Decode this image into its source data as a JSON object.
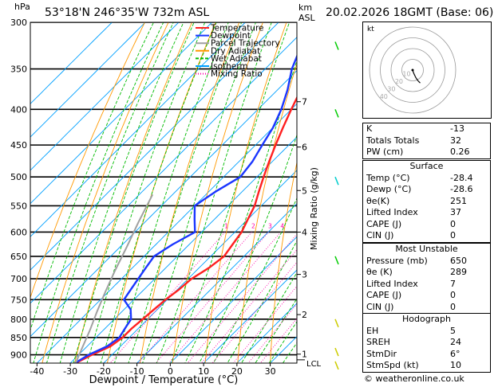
{
  "header": {
    "location": "53°18'N  246°35'W  732m  ASL",
    "datetime": "20.02.2026  18GMT  (Base: 06)",
    "hpa_label": "hPa",
    "km_label": "km",
    "asl_label": "ASL"
  },
  "chart_data": {
    "type": "skew-t",
    "xlabel": "Dewpoint / Temperature (°C)",
    "ylabel_right": "Mixing Ratio (g/kg)",
    "x_ticks": [
      -40,
      -30,
      -20,
      -10,
      0,
      10,
      20,
      30
    ],
    "x_range": [
      -42,
      38
    ],
    "pressure_levels": [
      300,
      350,
      400,
      450,
      500,
      550,
      600,
      650,
      700,
      750,
      800,
      850,
      900
    ],
    "pressure_range": [
      300,
      925
    ],
    "km_ticks": [
      {
        "label": "1",
        "p": 898
      },
      {
        "label": "2",
        "p": 788
      },
      {
        "label": "3",
        "p": 690
      },
      {
        "label": "4",
        "p": 600
      },
      {
        "label": "5",
        "p": 523
      },
      {
        "label": "6",
        "p": 453
      },
      {
        "label": "7",
        "p": 390
      }
    ],
    "lcl_label": "LCL",
    "lcl_p": 915,
    "mixing_ratio_values": [
      1,
      2,
      3,
      4,
      6,
      8,
      10,
      15,
      20,
      25
    ],
    "mixing_ratio_labels": [
      "1",
      "2",
      "3",
      "4",
      "6",
      "8",
      "10",
      "15",
      "20",
      "25"
    ],
    "legend": [
      {
        "label": "Temperature",
        "color": "#ff2020"
      },
      {
        "label": "Dewpoint",
        "color": "#1a36ff"
      },
      {
        "label": "Parcel Trajectory",
        "color": "#a0a0a0"
      },
      {
        "label": "Dry Adiabat",
        "color": "#ff9900"
      },
      {
        "label": "Wet Adiabat",
        "color": "#00bb00"
      },
      {
        "label": "Isotherm",
        "color": "#00a0ff"
      },
      {
        "label": "Mixing Ratio",
        "color": "#ff00aa"
      }
    ],
    "series": [
      {
        "name": "Temperature",
        "color": "#ff2020",
        "points": [
          [
            -28.4,
            925
          ],
          [
            -26,
            900
          ],
          [
            -23,
            875
          ],
          [
            -22,
            850
          ],
          [
            -22,
            825
          ],
          [
            -21.5,
            800
          ],
          [
            -21,
            775
          ],
          [
            -20.5,
            750
          ],
          [
            -19.5,
            725
          ],
          [
            -19,
            700
          ],
          [
            -17,
            675
          ],
          [
            -16,
            650
          ],
          [
            -17,
            625
          ],
          [
            -18,
            600
          ],
          [
            -20,
            575
          ],
          [
            -22,
            550
          ],
          [
            -25,
            525
          ],
          [
            -28,
            500
          ],
          [
            -31,
            475
          ],
          [
            -34,
            450
          ],
          [
            -37,
            425
          ],
          [
            -40,
            400
          ],
          [
            -43,
            375
          ],
          [
            -46,
            350
          ],
          [
            -50,
            325
          ],
          [
            -54,
            300
          ]
        ]
      },
      {
        "name": "Dewpoint",
        "color": "#1a36ff",
        "points": [
          [
            -28.6,
            925
          ],
          [
            -27,
            900
          ],
          [
            -24,
            875
          ],
          [
            -23,
            850
          ],
          [
            -24,
            825
          ],
          [
            -25,
            800
          ],
          [
            -28,
            775
          ],
          [
            -33,
            750
          ],
          [
            -34,
            725
          ],
          [
            -35,
            700
          ],
          [
            -36,
            675
          ],
          [
            -37,
            650
          ],
          [
            -35,
            625
          ],
          [
            -32,
            600
          ],
          [
            -36,
            575
          ],
          [
            -40,
            550
          ],
          [
            -38,
            525
          ],
          [
            -35,
            500
          ],
          [
            -36,
            475
          ],
          [
            -38,
            450
          ],
          [
            -40,
            425
          ],
          [
            -43,
            400
          ],
          [
            -47,
            375
          ],
          [
            -52,
            350
          ],
          [
            -56,
            325
          ],
          [
            -60,
            300
          ]
        ]
      },
      {
        "name": "Parcel Trajectory",
        "color": "#a0a0a0",
        "points": [
          [
            -28.4,
            925
          ],
          [
            -31,
            880
          ],
          [
            -34,
            830
          ],
          [
            -37.5,
            780
          ],
          [
            -41,
            730
          ],
          [
            -44.5,
            680
          ],
          [
            -48,
            630
          ],
          [
            -52,
            580
          ],
          [
            -56,
            530
          ]
        ]
      }
    ]
  },
  "hodograph": {
    "label": "kt",
    "ring_labels": [
      "10",
      "20",
      "30",
      "40"
    ],
    "points_uv": [
      [
        0,
        0
      ],
      [
        1,
        -3
      ],
      [
        3,
        -7
      ],
      [
        5,
        -10
      ],
      [
        7,
        -12
      ]
    ]
  },
  "indices": {
    "rows": [
      {
        "label": "K",
        "value": "-13"
      },
      {
        "label": "Totals Totals",
        "value": "32"
      },
      {
        "label": "PW (cm)",
        "value": "0.26"
      }
    ]
  },
  "surface": {
    "title": "Surface",
    "rows": [
      {
        "label": "Temp (°C)",
        "value": "-28.4"
      },
      {
        "label": "Dewp (°C)",
        "value": "-28.6"
      },
      {
        "label": "θe(K)",
        "value": "251"
      },
      {
        "label": "Lifted Index",
        "value": "37"
      },
      {
        "label": "CAPE (J)",
        "value": "0"
      },
      {
        "label": "CIN (J)",
        "value": "0"
      }
    ]
  },
  "most_unstable": {
    "title": "Most Unstable",
    "rows": [
      {
        "label": "Pressure (mb)",
        "value": "650"
      },
      {
        "label": "θe (K)",
        "value": "289"
      },
      {
        "label": "Lifted Index",
        "value": "7"
      },
      {
        "label": "CAPE (J)",
        "value": "0"
      },
      {
        "label": "CIN (J)",
        "value": "0"
      }
    ]
  },
  "hodograph_table": {
    "title": "Hodograph",
    "rows": [
      {
        "label": "EH",
        "value": "5"
      },
      {
        "label": "SREH",
        "value": "24"
      },
      {
        "label": "StmDir",
        "value": "6°"
      },
      {
        "label": "StmSpd (kt)",
        "value": "10"
      }
    ]
  },
  "footer": {
    "copyright": "© weatheronline.co.uk"
  }
}
